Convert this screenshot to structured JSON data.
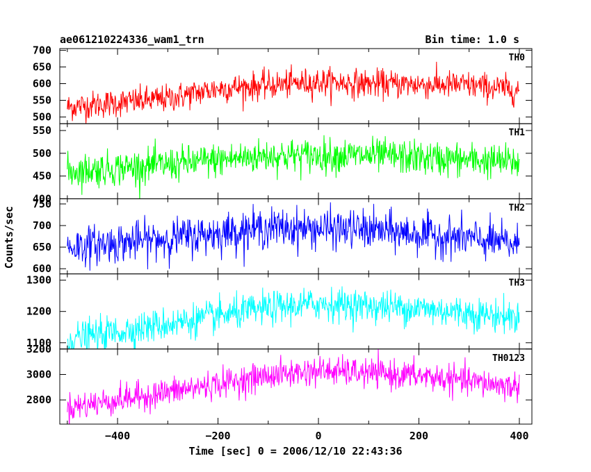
{
  "chart_data": {
    "type": "line",
    "title": "ae061210224336_wam1_trn",
    "bin_time": "Bin time: 1.0 s",
    "xlabel": "Time [sec] 0 = 2006/12/10 22:43:36",
    "ylabel": "Counts/sec",
    "x_range": [
      -500,
      400
    ],
    "xlim": [
      -515,
      425
    ],
    "x_ticks": [
      -400,
      -200,
      0,
      200,
      400
    ],
    "x_tick_labels": [
      "−400",
      "−200",
      "0",
      "200",
      "400"
    ],
    "grid": false,
    "panels": [
      {
        "name": "TH0",
        "color": "#ff0000",
        "ylim": [
          480,
          705
        ],
        "y_ticks": [
          500,
          550,
          600,
          650,
          700
        ],
        "trend": [
          [
            -500,
            530
          ],
          [
            -300,
            555
          ],
          [
            -200,
            585
          ],
          [
            0,
            605
          ],
          [
            100,
            600
          ],
          [
            300,
            595
          ],
          [
            400,
            580
          ]
        ],
        "noise": 28
      },
      {
        "name": "TH1",
        "color": "#00ff00",
        "ylim": [
          400,
          565
        ],
        "y_ticks": [
          400,
          450,
          500,
          550
        ],
        "trend": [
          [
            -500,
            460
          ],
          [
            -300,
            475
          ],
          [
            -100,
            495
          ],
          [
            100,
            495
          ],
          [
            300,
            485
          ],
          [
            400,
            480
          ]
        ],
        "noise": 25
      },
      {
        "name": "TH2",
        "color": "#0000ff",
        "ylim": [
          588,
          762
        ],
        "y_ticks": [
          600,
          650,
          700,
          750
        ],
        "trend": [
          [
            -500,
            650
          ],
          [
            -300,
            670
          ],
          [
            -100,
            695
          ],
          [
            100,
            690
          ],
          [
            300,
            670
          ],
          [
            400,
            655
          ]
        ],
        "noise": 30
      },
      {
        "name": "TH3",
        "color": "#00ffff",
        "ylim": [
          1080,
          1320
        ],
        "y_ticks": [
          1100,
          1200,
          1300
        ],
        "trend": [
          [
            -500,
            1110
          ],
          [
            -300,
            1160
          ],
          [
            -100,
            1210
          ],
          [
            0,
            1225
          ],
          [
            200,
            1210
          ],
          [
            400,
            1180
          ]
        ],
        "noise": 35
      },
      {
        "name": "TH0123",
        "color": "#ff00ff",
        "ylim": [
          2610,
          3200
        ],
        "y_ticks": [
          2800,
          3000,
          3200
        ],
        "trend": [
          [
            -500,
            2740
          ],
          [
            -300,
            2860
          ],
          [
            -100,
            2990
          ],
          [
            0,
            3030
          ],
          [
            200,
            2990
          ],
          [
            400,
            2900
          ]
        ],
        "noise": 75
      }
    ]
  }
}
